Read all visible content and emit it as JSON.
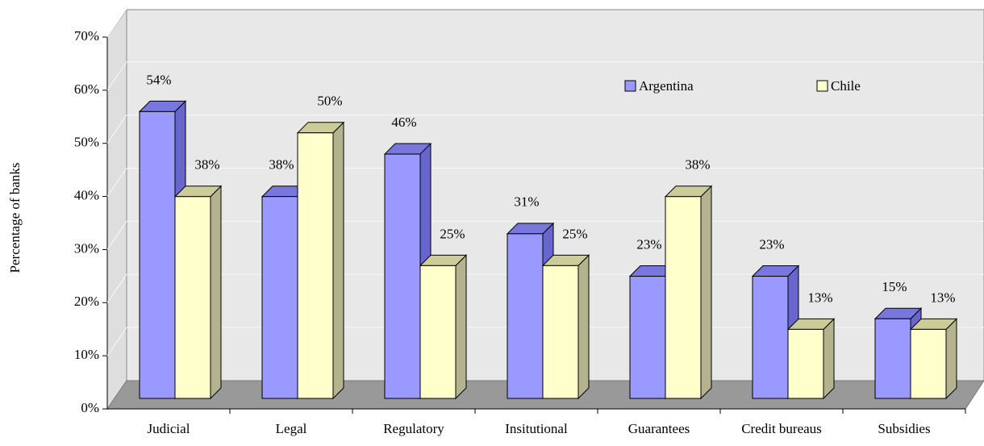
{
  "chart_data": {
    "type": "bar3d",
    "categories": [
      "Judicial",
      "Legal",
      "Regulatory",
      "Insitutional",
      "Guarantees",
      "Credit bureaus",
      "Subsidies"
    ],
    "series": [
      {
        "name": "Argentina",
        "color": "#9999ff",
        "values": [
          54,
          38,
          46,
          31,
          23,
          23,
          15
        ],
        "value_labels": [
          "54%",
          "38%",
          "46%",
          "31%",
          "23%",
          "23%",
          "15%"
        ]
      },
      {
        "name": "Chile",
        "color": "#ffffcc",
        "values": [
          38,
          50,
          25,
          25,
          38,
          13,
          13
        ],
        "value_labels": [
          "38%",
          "50%",
          "25%",
          "25%",
          "38%",
          "13%",
          "13%"
        ]
      }
    ],
    "ylabel": "Percentage of banks",
    "ylim": [
      0,
      70
    ],
    "yticks": [
      {
        "value": 0,
        "label": "0%"
      },
      {
        "value": 10,
        "label": "10%"
      },
      {
        "value": 20,
        "label": "20%"
      },
      {
        "value": 30,
        "label": "30%"
      },
      {
        "value": 40,
        "label": "40%"
      },
      {
        "value": 50,
        "label": "50%"
      },
      {
        "value": 60,
        "label": "60%"
      },
      {
        "value": 70,
        "label": "70%"
      }
    ],
    "grid": true
  }
}
